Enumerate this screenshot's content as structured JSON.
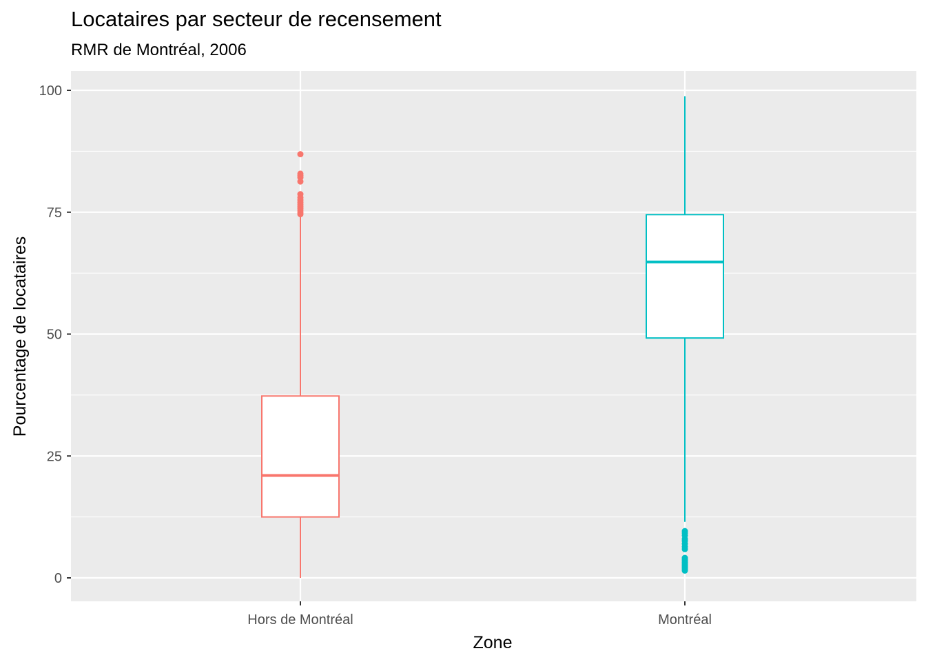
{
  "chart_data": {
    "type": "boxplot",
    "title": "Locataires par secteur de recensement",
    "subtitle": "RMR de Montréal, 2006",
    "xlabel": "Zone",
    "ylabel": "Pourcentage de locataires",
    "categories": [
      "Hors de Montréal",
      "Montréal"
    ],
    "ylim": [
      -5,
      105
    ],
    "yticks": [
      0,
      25,
      50,
      75,
      100
    ],
    "grid": true,
    "background": "#ebebeb",
    "boxes": [
      {
        "name": "Hors de Montréal",
        "color": "#f8766d",
        "min": 0,
        "q1": 12.5,
        "median": 21,
        "q3": 37.3,
        "max": 74.5,
        "outliers": [
          74.6,
          75.0,
          75.4,
          75.8,
          76.2,
          76.6,
          77.0,
          77.5,
          78.0,
          78.7,
          81.3,
          82.1,
          82.5,
          82.9,
          86.9
        ]
      },
      {
        "name": "Montréal",
        "color": "#00bfc4",
        "min": 11.5,
        "q1": 49.2,
        "median": 64.8,
        "q3": 74.5,
        "max": 98.8,
        "outliers": [
          9.6,
          9.2,
          8.7,
          8.0,
          7.6,
          7.0,
          6.4,
          5.9,
          4.1,
          3.8,
          3.5,
          3.2,
          3.0,
          2.7,
          2.4,
          2.1,
          1.8,
          1.5
        ]
      }
    ]
  }
}
